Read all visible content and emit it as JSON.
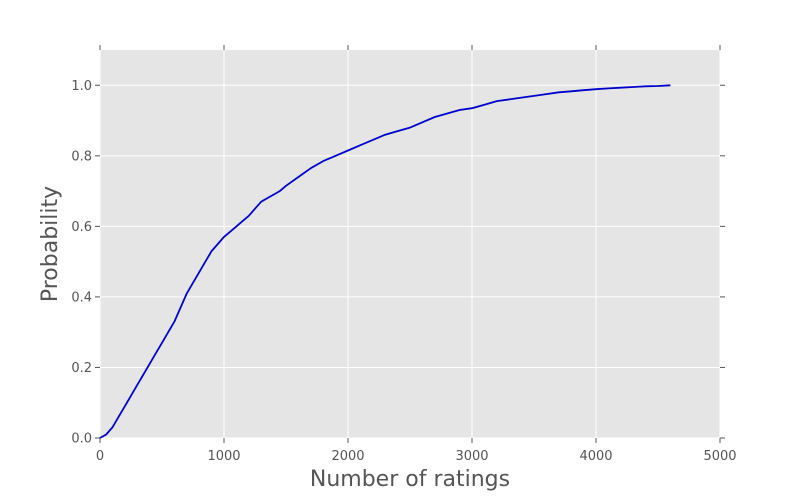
{
  "chart_data": {
    "type": "line",
    "title": "",
    "xlabel": "Number of ratings",
    "ylabel": "Probability",
    "xlim": [
      0,
      5000
    ],
    "ylim": [
      0.0,
      1.1
    ],
    "grid": true,
    "background_color": "#e5e5e5",
    "grid_color": "#ffffff",
    "x_ticks": [
      0,
      1000,
      2000,
      3000,
      4000,
      5000
    ],
    "x_tick_labels": [
      "0",
      "1000",
      "2000",
      "3000",
      "4000",
      "5000"
    ],
    "y_ticks": [
      0.0,
      0.2,
      0.4,
      0.6,
      0.8,
      1.0
    ],
    "y_tick_labels": [
      "0.0",
      "0.2",
      "0.4",
      "0.6",
      "0.8",
      "1.0"
    ],
    "series": [
      {
        "color": "#0000cc",
        "x": [
          0,
          50,
          100,
          150,
          200,
          250,
          300,
          350,
          400,
          450,
          500,
          550,
          600,
          650,
          700,
          750,
          800,
          850,
          900,
          950,
          1000,
          1050,
          1100,
          1150,
          1200,
          1250,
          1300,
          1350,
          1400,
          1450,
          1500,
          1600,
          1700,
          1800,
          1900,
          2000,
          2100,
          2200,
          2300,
          2400,
          2500,
          2600,
          2700,
          2800,
          2900,
          3000,
          3100,
          3200,
          3300,
          3400,
          3500,
          3600,
          3700,
          3800,
          3900,
          4000,
          4100,
          4200,
          4300,
          4400,
          4500,
          4600
        ],
        "y": [
          0.0,
          0.01,
          0.03,
          0.06,
          0.09,
          0.12,
          0.15,
          0.18,
          0.21,
          0.24,
          0.27,
          0.3,
          0.33,
          0.37,
          0.41,
          0.44,
          0.47,
          0.5,
          0.53,
          0.55,
          0.57,
          0.585,
          0.6,
          0.615,
          0.63,
          0.65,
          0.67,
          0.68,
          0.69,
          0.7,
          0.715,
          0.74,
          0.765,
          0.785,
          0.8,
          0.815,
          0.83,
          0.845,
          0.86,
          0.87,
          0.88,
          0.895,
          0.91,
          0.92,
          0.93,
          0.935,
          0.945,
          0.955,
          0.96,
          0.965,
          0.97,
          0.975,
          0.98,
          0.983,
          0.986,
          0.989,
          0.991,
          0.993,
          0.995,
          0.997,
          0.998,
          1.0
        ]
      }
    ]
  }
}
